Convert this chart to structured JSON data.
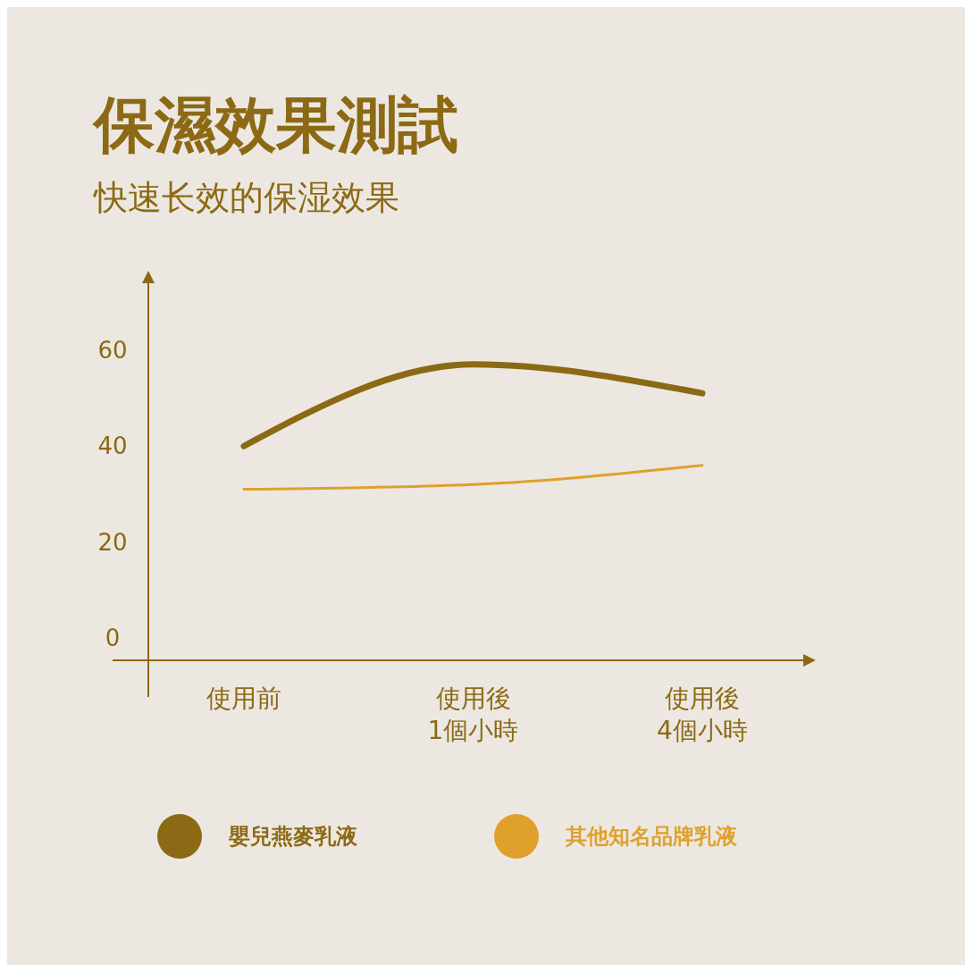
{
  "chart_data": {
    "type": "line",
    "title": "保濕效果測試",
    "subtitle": "快速长效的保湿效果",
    "categories": [
      "使用前",
      "使用後\n1個小時",
      "使用後\n4個小時"
    ],
    "series": [
      {
        "name": "嬰兒燕麥乳液",
        "color": "#8c6914",
        "values": [
          40,
          57,
          51
        ]
      },
      {
        "name": "其他知名品牌乳液",
        "color": "#e0a02c",
        "values": [
          31,
          32,
          36
        ]
      }
    ],
    "ylim": [
      -4.6,
      76.5
    ],
    "yticks": [
      0,
      20,
      40,
      60
    ],
    "grid": false,
    "legend": "bottom",
    "marker": "none"
  }
}
